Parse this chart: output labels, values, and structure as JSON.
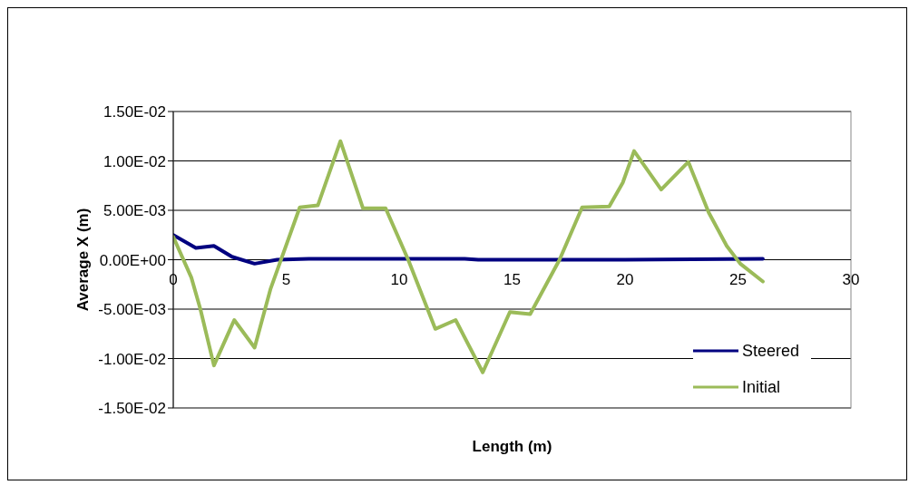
{
  "chart_data": {
    "type": "line",
    "xlabel": "Length (m)",
    "ylabel": "Average X (m)",
    "xlim": [
      0,
      30
    ],
    "xticks": [
      0,
      5,
      10,
      15,
      20,
      25,
      30
    ],
    "ylim": [
      -0.015,
      0.015
    ],
    "yticks": [
      {
        "value": -0.015,
        "label": "-1.50E-02"
      },
      {
        "value": -0.01,
        "label": "-1.00E-02"
      },
      {
        "value": -0.005,
        "label": "-5.00E-03"
      },
      {
        "value": 0,
        "label": "0.00E+00"
      },
      {
        "value": 0.005,
        "label": "5.00E-03"
      },
      {
        "value": 0.01,
        "label": "1.00E-02"
      },
      {
        "value": 0.015,
        "label": "1.50E-02"
      }
    ],
    "grid": "y",
    "legend": "bottom right",
    "marker": "none",
    "line_style": "solid",
    "series": [
      {
        "name": "Steered",
        "color": "#000080",
        "x": [
          0,
          1.0,
          1.8,
          2.6,
          3.6,
          4.6,
          6,
          9,
          12.9,
          13.5,
          20,
          26.1
        ],
        "values": [
          0.0025,
          0.0012,
          0.0014,
          0.0003,
          -0.0004,
          0,
          0.0001,
          0.0001,
          0.0001,
          0,
          0,
          0.0001
        ]
      },
      {
        "name": "Initial",
        "color": "#9bbb59",
        "x": [
          0,
          0.8,
          1.2,
          1.8,
          2.7,
          3.6,
          4.3,
          5.6,
          6.4,
          7.4,
          8.4,
          9.4,
          10.4,
          11.6,
          12.5,
          13.7,
          14.9,
          15.8,
          17.1,
          18.1,
          19.3,
          19.9,
          20.4,
          21.6,
          22.8,
          23.7,
          24.5,
          25.1,
          26.1
        ],
        "values": [
          0.0023,
          -0.0018,
          -0.005,
          -0.0107,
          -0.0061,
          -0.0089,
          -0.003,
          0.0053,
          0.0055,
          0.012,
          0.0052,
          0.0052,
          0,
          -0.007,
          -0.0061,
          -0.0114,
          -0.0053,
          -0.0055,
          0,
          0.0053,
          0.0054,
          0.0078,
          0.011,
          0.0071,
          0.0099,
          0.0048,
          0.0014,
          -0.0004,
          -0.0022
        ]
      }
    ]
  }
}
